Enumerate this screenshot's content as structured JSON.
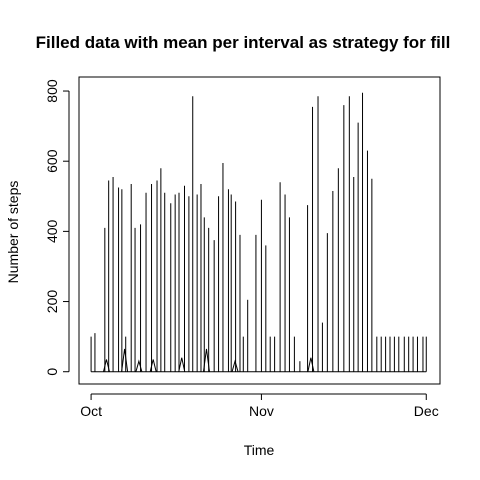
{
  "chart_data": {
    "type": "line",
    "title": "Filled data with mean per interval as strategy for fill",
    "xlabel": "Time",
    "ylabel": "Number of steps",
    "x_ticks": [
      {
        "label": "Oct",
        "day": 0
      },
      {
        "label": "Nov",
        "day": 31
      },
      {
        "label": "Dec",
        "day": 61
      }
    ],
    "y_ticks": [
      0,
      200,
      400,
      600,
      800
    ],
    "xlim": [
      -2.2,
      63.5
    ],
    "ylim": [
      -35,
      840
    ],
    "grid": false,
    "legend": "none",
    "line_color": "#000000",
    "series": [
      {
        "x_days": [
          0.0,
          0.7,
          2.5,
          3.2,
          4.0,
          5.0,
          5.6,
          6.3,
          7.3,
          8.0,
          9.0,
          10.0,
          11.0,
          12.0,
          12.7,
          13.4,
          14.5,
          15.3,
          16.0,
          17.0,
          17.8,
          18.5,
          19.3,
          20.0,
          20.6,
          21.4,
          22.4,
          23.2,
          24.0,
          25.0,
          25.5,
          26.3,
          27.1,
          27.7,
          28.5,
          30.0,
          31.0,
          31.8,
          32.6,
          33.4,
          34.4,
          35.3,
          36.1,
          37.0,
          38.0,
          39.4,
          40.3,
          41.3,
          42.1,
          43.0,
          44.0,
          45.0,
          46.0,
          47.0,
          47.8,
          48.6,
          49.4,
          50.3,
          51.1,
          52.0,
          52.8,
          53.6,
          54.4,
          55.2,
          56.0,
          57.0,
          57.8,
          58.6,
          59.4,
          60.4,
          61.0
        ],
        "y_steps": [
          100,
          110,
          410,
          545,
          555,
          525,
          520,
          100,
          535,
          410,
          420,
          510,
          535,
          545,
          580,
          510,
          480,
          505,
          510,
          530,
          500,
          785,
          505,
          535,
          440,
          410,
          375,
          500,
          595,
          520,
          505,
          485,
          390,
          100,
          205,
          390,
          490,
          360,
          100,
          100,
          540,
          505,
          440,
          100,
          30,
          475,
          755,
          785,
          140,
          395,
          515,
          580,
          760,
          785,
          555,
          710,
          795,
          630,
          550,
          100,
          100,
          100,
          100,
          100,
          100,
          100,
          100,
          100,
          100,
          100,
          100
        ]
      }
    ],
    "minor_bumps": [
      {
        "day": 2.8,
        "peak": 35
      },
      {
        "day": 6.1,
        "peak": 65
      },
      {
        "day": 8.7,
        "peak": 30
      },
      {
        "day": 11.3,
        "peak": 35
      },
      {
        "day": 16.5,
        "peak": 40
      },
      {
        "day": 21.0,
        "peak": 65
      },
      {
        "day": 26.2,
        "peak": 30
      },
      {
        "day": 40.0,
        "peak": 40
      }
    ]
  }
}
